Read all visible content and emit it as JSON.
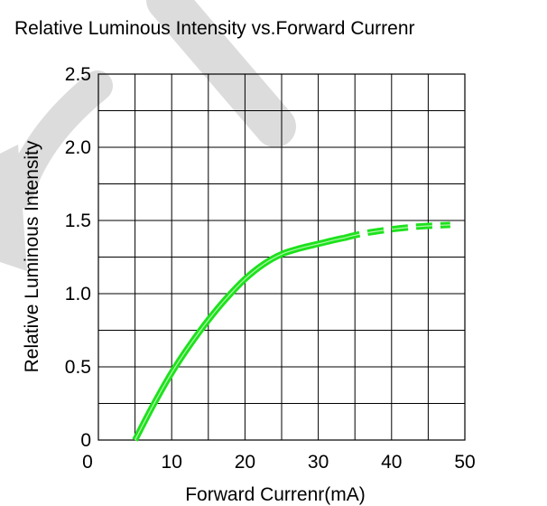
{
  "colors": {
    "curve": "#1de21d",
    "curve_highlight": "#b8f5b0",
    "watermark": "#dcdcdc"
  },
  "chart_data": {
    "type": "line",
    "title": "Relative Luminous Intensity vs.Forward Currenr",
    "xlabel": "Forward Currenr(mA)",
    "ylabel": "Relative Luminous Intensity",
    "xlim": [
      0,
      50
    ],
    "ylim": [
      0,
      2.5
    ],
    "x_ticks": [
      "0",
      "10",
      "20",
      "30",
      "40",
      "50"
    ],
    "y_ticks": [
      "0",
      "0.5",
      "1.0",
      "1.5",
      "2.0",
      "2.5"
    ],
    "grid": true,
    "series": [
      {
        "style": "solid",
        "x": [
          5,
          7.5,
          10,
          12.5,
          15,
          17.5,
          20,
          22.5,
          25,
          27.5,
          30,
          32.5,
          33.5
        ],
        "y": [
          0.0,
          0.24,
          0.46,
          0.65,
          0.82,
          0.97,
          1.1,
          1.2,
          1.27,
          1.31,
          1.34,
          1.37,
          1.38
        ]
      },
      {
        "style": "dashed",
        "x": [
          33.5,
          36,
          40,
          44,
          48
        ],
        "y": [
          1.38,
          1.41,
          1.44,
          1.46,
          1.47
        ]
      }
    ]
  }
}
